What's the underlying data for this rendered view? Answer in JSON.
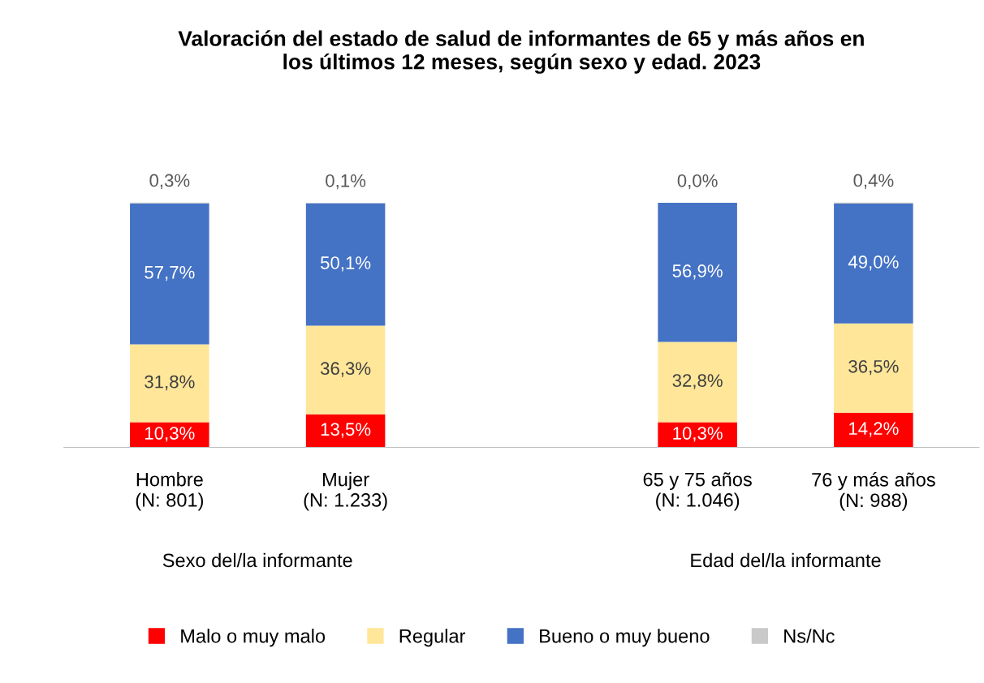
{
  "chart_data": {
    "type": "bar",
    "stacked": true,
    "title": "Valoración del estado de salud de informantes de 65 y más años en\nlos últimos 12 meses, según sexo y edad. 2023",
    "categories": [
      "Hombre\n(N: 801)",
      "Mujer\n(N: 1.233)",
      null,
      "65 y 75 años\n(N: 1.046)",
      "76 y más años\n(N: 988)"
    ],
    "series": [
      {
        "name": "Malo o muy malo",
        "color": "#ff0000",
        "values": [
          10.3,
          13.5,
          null,
          10.3,
          14.2
        ],
        "value_labels": [
          "10,3%",
          "13,5%",
          null,
          "10,3%",
          "14,2%"
        ]
      },
      {
        "name": "Regular",
        "color": "#ffe699",
        "values": [
          31.8,
          36.3,
          null,
          32.8,
          36.5
        ],
        "value_labels": [
          "31,8%",
          "36,3%",
          null,
          "32,8%",
          "36,5%"
        ]
      },
      {
        "name": "Bueno o muy bueno",
        "color": "#4472c4",
        "values": [
          57.7,
          50.1,
          null,
          56.9,
          49.0
        ],
        "value_labels": [
          "57,7%",
          "50,1%",
          null,
          "56,9%",
          "49,0%"
        ]
      },
      {
        "name": "Ns/Nc",
        "color": "#c9c9c9",
        "values": [
          0.3,
          0.1,
          null,
          0.0,
          0.4
        ],
        "value_labels": [
          "0,3%",
          "0,1%",
          null,
          "0,0%",
          "0,4%"
        ]
      }
    ],
    "annotations": [
      "Sexo del/la informante",
      "Edad del/la informante"
    ],
    "grid": false,
    "legend": "bottom"
  }
}
